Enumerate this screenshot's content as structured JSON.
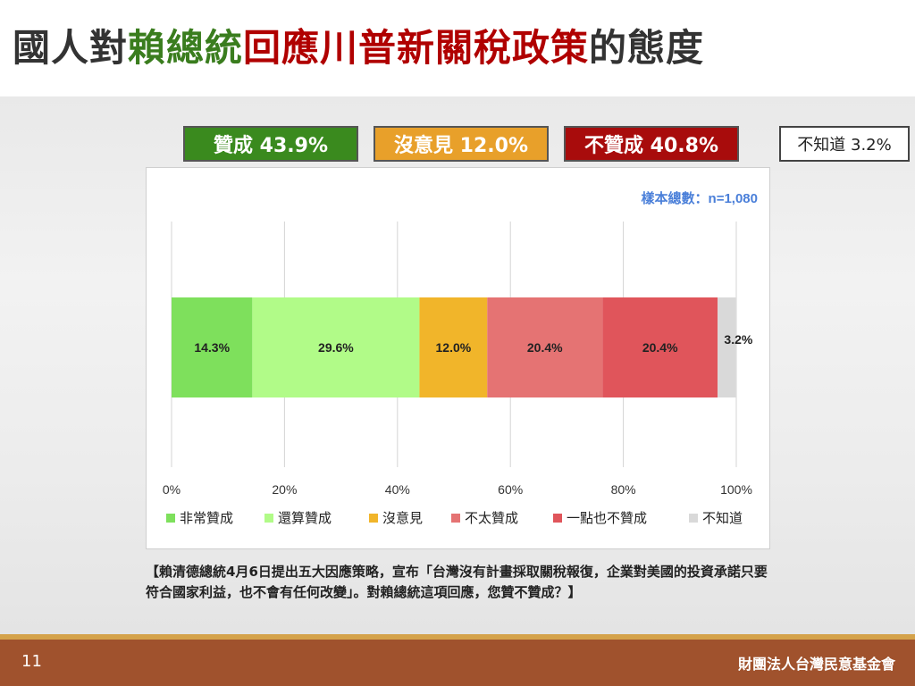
{
  "title": {
    "part1": "國人對",
    "part2": "賴總統",
    "part3": "回應川普新關稅政策",
    "part4": "的態度"
  },
  "summary": [
    {
      "label": "贊成 43.9%",
      "bg": "#3a8a1e",
      "fg": "#ffffff"
    },
    {
      "label": "沒意見 12.0%",
      "bg": "#e8a02a",
      "fg": "#ffffff"
    },
    {
      "label": "不贊成 40.8%",
      "bg": "#a80c0c",
      "fg": "#ffffff"
    },
    {
      "label": "不知道 3.2%",
      "bg": "#ffffff",
      "fg": "#222222"
    }
  ],
  "chart_data": {
    "type": "bar",
    "orientation": "horizontal-stacked",
    "sample_note": "樣本總數：n=1,080",
    "series": [
      {
        "name": "非常贊成",
        "values": [
          14.3
        ],
        "color": "#7ee05c",
        "label": "14.3%"
      },
      {
        "name": "還算贊成",
        "values": [
          29.6
        ],
        "color": "#b1fb88",
        "label": "29.6%"
      },
      {
        "name": "沒意見",
        "values": [
          12.0
        ],
        "color": "#f1b52a",
        "label": "12.0%"
      },
      {
        "name": "不太贊成",
        "values": [
          20.4
        ],
        "color": "#e57373",
        "label": "20.4%"
      },
      {
        "name": "一點也不贊成",
        "values": [
          20.4
        ],
        "color": "#e0555b",
        "label": "20.4%"
      },
      {
        "name": "不知道",
        "values": [
          3.2
        ],
        "color": "#d9d9d9",
        "label": "3.2%"
      }
    ],
    "xlim": [
      0,
      100
    ],
    "x_ticks": [
      "0%",
      "20%",
      "40%",
      "60%",
      "80%",
      "100%"
    ],
    "x_tick_values": [
      0,
      20,
      40,
      60,
      80,
      100
    ],
    "grid": true,
    "legend": "bottom"
  },
  "question": "【賴清德總統4月6日提出五大因應策略，宣布「台灣沒有計畫採取關稅報復，企業對美國的投資承諾只要符合國家利益，也不會有任何改變」。對賴總統這項回應，您贊不贊成？】",
  "footer": {
    "page_number": "11",
    "organization": "財團法人台灣民意基金會"
  }
}
